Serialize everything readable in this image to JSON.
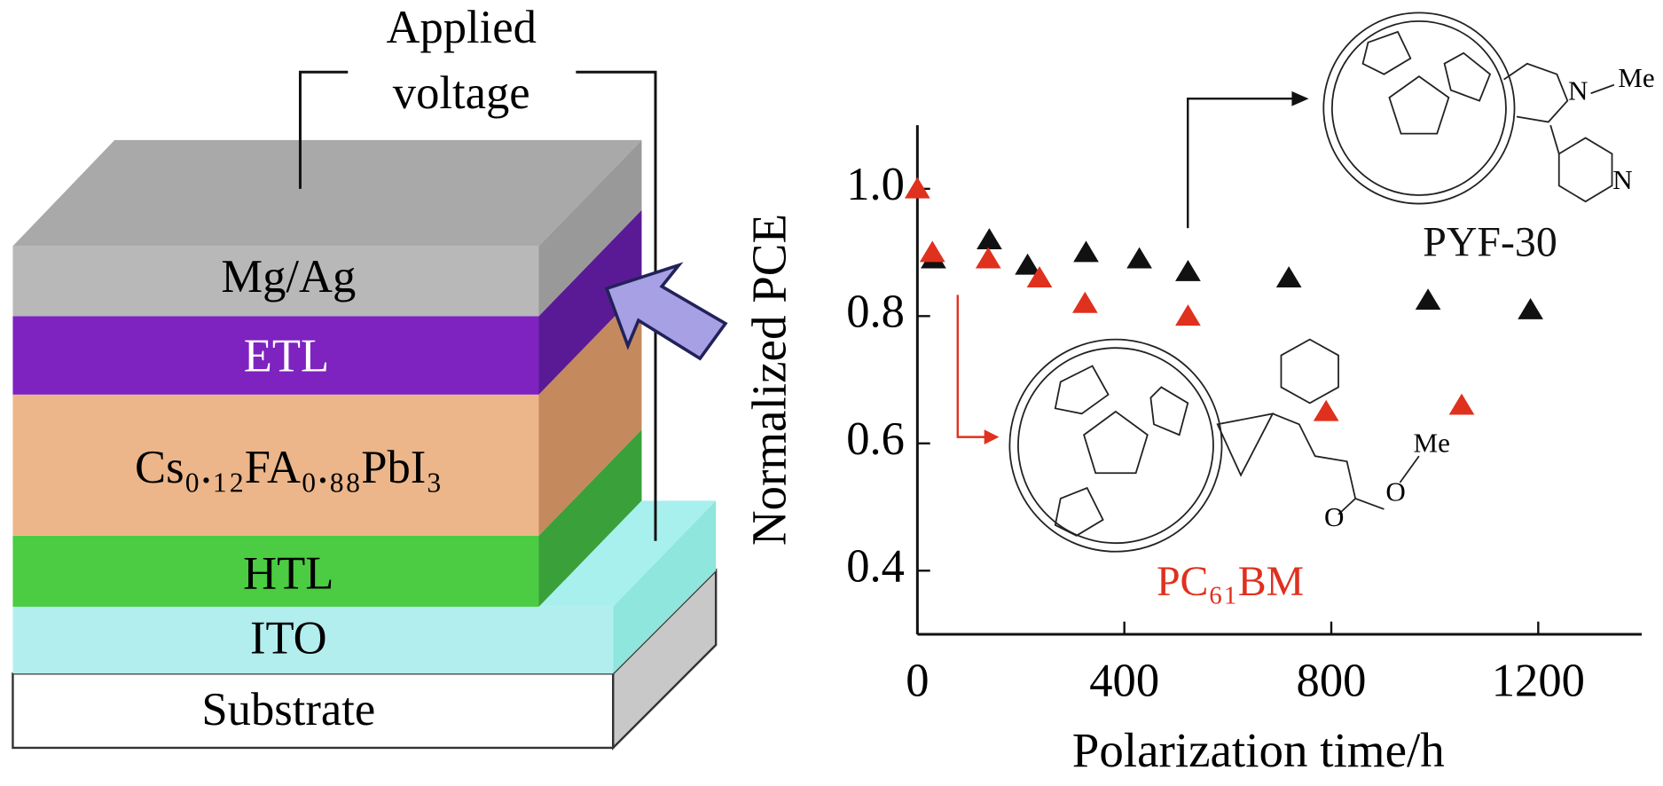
{
  "diagram": {
    "voltage_label": [
      "Applied",
      "voltage"
    ],
    "layers": [
      "Mg/Ag",
      "ETL",
      "Cs₀.₁₂FA₀.₈₈PbI₃",
      "HTL",
      "ITO",
      "Substrate"
    ],
    "atoms": {
      "pyf_n1": "N",
      "pyf_me": "Me",
      "pyf_n2": "N",
      "pcbm_me": "Me",
      "pcbm_o1": "O",
      "pcbm_o2": "O"
    }
  },
  "chart_data": {
    "type": "scatter",
    "x_label": "Polarization time/h",
    "y_label": "Normalized PCE",
    "xlim": [
      0,
      1400
    ],
    "ylim": [
      0.3,
      1.1
    ],
    "xticks": [
      0,
      400,
      800,
      1200
    ],
    "yticks": [
      0.4,
      0.6,
      0.8,
      {
        "value": 1,
        "label": "1.0"
      }
    ],
    "series": [
      {
        "name": "PYF-30",
        "color": "#111111",
        "x": [
          31,
          139,
          213,
          326,
          429,
          523,
          718,
          987,
          1185
        ],
        "values": [
          0.89,
          0.92,
          0.88,
          0.9,
          0.89,
          0.87,
          0.86,
          0.825,
          0.81
        ]
      },
      {
        "name": "PC₆₁BM",
        "color": "#e0301e",
        "x": [
          0,
          29,
          137,
          236,
          324,
          523,
          790,
          1052
        ],
        "values": [
          1.0,
          0.9,
          0.89,
          0.86,
          0.82,
          0.8,
          0.65,
          0.66
        ]
      }
    ]
  }
}
